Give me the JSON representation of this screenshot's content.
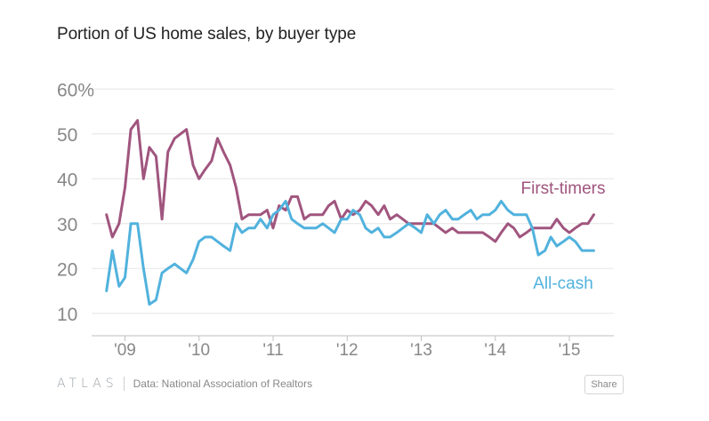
{
  "chart_data": {
    "type": "line",
    "title": "Portion of US home sales, by buyer type",
    "xlabel": "",
    "ylabel": "",
    "ylim": [
      5,
      65
    ],
    "xlim": [
      2008.55,
      2015.6
    ],
    "y_ticks": [
      10,
      20,
      30,
      40,
      50,
      60
    ],
    "y_tick_labels": [
      "10",
      "20",
      "30",
      "40",
      "50",
      "60%"
    ],
    "x_ticks": [
      2009,
      2010,
      2011,
      2012,
      2013,
      2014,
      2015
    ],
    "x_tick_labels": [
      "'09",
      "'10",
      "'11",
      "'12",
      "'13",
      "'14",
      "'15"
    ],
    "series": [
      {
        "name": "First-timers",
        "label": "First-timers",
        "color": "#a0557e",
        "points": [
          [
            2008.75,
            32
          ],
          [
            2008.83,
            27
          ],
          [
            2008.92,
            30
          ],
          [
            2009.0,
            38
          ],
          [
            2009.08,
            51
          ],
          [
            2009.17,
            53
          ],
          [
            2009.25,
            40
          ],
          [
            2009.33,
            47
          ],
          [
            2009.42,
            45
          ],
          [
            2009.5,
            31
          ],
          [
            2009.58,
            46
          ],
          [
            2009.67,
            49
          ],
          [
            2009.75,
            50
          ],
          [
            2009.83,
            51
          ],
          [
            2009.92,
            43
          ],
          [
            2010.0,
            40
          ],
          [
            2010.08,
            42
          ],
          [
            2010.17,
            44
          ],
          [
            2010.25,
            49
          ],
          [
            2010.33,
            46
          ],
          [
            2010.42,
            43
          ],
          [
            2010.5,
            38
          ],
          [
            2010.58,
            31
          ],
          [
            2010.67,
            32
          ],
          [
            2010.75,
            32
          ],
          [
            2010.83,
            32
          ],
          [
            2010.92,
            33
          ],
          [
            2011.0,
            29
          ],
          [
            2011.08,
            34
          ],
          [
            2011.17,
            33
          ],
          [
            2011.25,
            36
          ],
          [
            2011.33,
            36
          ],
          [
            2011.42,
            31
          ],
          [
            2011.5,
            32
          ],
          [
            2011.58,
            32
          ],
          [
            2011.67,
            32
          ],
          [
            2011.75,
            34
          ],
          [
            2011.83,
            35
          ],
          [
            2011.92,
            31
          ],
          [
            2012.0,
            33
          ],
          [
            2012.08,
            32
          ],
          [
            2012.17,
            33
          ],
          [
            2012.25,
            35
          ],
          [
            2012.33,
            34
          ],
          [
            2012.42,
            32
          ],
          [
            2012.5,
            34
          ],
          [
            2012.58,
            31
          ],
          [
            2012.67,
            32
          ],
          [
            2012.75,
            31
          ],
          [
            2012.83,
            30
          ],
          [
            2012.92,
            30
          ],
          [
            2013.0,
            30
          ],
          [
            2013.08,
            30
          ],
          [
            2013.17,
            30
          ],
          [
            2013.25,
            29
          ],
          [
            2013.33,
            28
          ],
          [
            2013.42,
            29
          ],
          [
            2013.5,
            28
          ],
          [
            2013.58,
            28
          ],
          [
            2013.67,
            28
          ],
          [
            2013.75,
            28
          ],
          [
            2013.83,
            28
          ],
          [
            2013.92,
            27
          ],
          [
            2014.0,
            26
          ],
          [
            2014.08,
            28
          ],
          [
            2014.17,
            30
          ],
          [
            2014.25,
            29
          ],
          [
            2014.33,
            27
          ],
          [
            2014.42,
            28
          ],
          [
            2014.5,
            29
          ],
          [
            2014.58,
            29
          ],
          [
            2014.67,
            29
          ],
          [
            2014.75,
            29
          ],
          [
            2014.83,
            31
          ],
          [
            2014.92,
            29
          ],
          [
            2015.0,
            28
          ],
          [
            2015.08,
            29
          ],
          [
            2015.17,
            30
          ],
          [
            2015.25,
            30
          ],
          [
            2015.33,
            32
          ]
        ]
      },
      {
        "name": "All-cash",
        "label": "All-cash",
        "color": "#51b2dd",
        "points": [
          [
            2008.75,
            15
          ],
          [
            2008.83,
            24
          ],
          [
            2008.92,
            16
          ],
          [
            2009.0,
            18
          ],
          [
            2009.08,
            30
          ],
          [
            2009.17,
            30
          ],
          [
            2009.25,
            20
          ],
          [
            2009.33,
            12
          ],
          [
            2009.42,
            13
          ],
          [
            2009.5,
            19
          ],
          [
            2009.58,
            20
          ],
          [
            2009.67,
            21
          ],
          [
            2009.75,
            20
          ],
          [
            2009.83,
            19
          ],
          [
            2009.92,
            22
          ],
          [
            2010.0,
            26
          ],
          [
            2010.08,
            27
          ],
          [
            2010.17,
            27
          ],
          [
            2010.25,
            26
          ],
          [
            2010.33,
            25
          ],
          [
            2010.42,
            24
          ],
          [
            2010.5,
            30
          ],
          [
            2010.58,
            28
          ],
          [
            2010.67,
            29
          ],
          [
            2010.75,
            29
          ],
          [
            2010.83,
            31
          ],
          [
            2010.92,
            29
          ],
          [
            2011.0,
            32
          ],
          [
            2011.08,
            33
          ],
          [
            2011.17,
            35
          ],
          [
            2011.25,
            31
          ],
          [
            2011.33,
            30
          ],
          [
            2011.42,
            29
          ],
          [
            2011.5,
            29
          ],
          [
            2011.58,
            29
          ],
          [
            2011.67,
            30
          ],
          [
            2011.75,
            29
          ],
          [
            2011.83,
            28
          ],
          [
            2011.92,
            31
          ],
          [
            2012.0,
            31
          ],
          [
            2012.08,
            33
          ],
          [
            2012.17,
            32
          ],
          [
            2012.25,
            29
          ],
          [
            2012.33,
            28
          ],
          [
            2012.42,
            29
          ],
          [
            2012.5,
            27
          ],
          [
            2012.58,
            27
          ],
          [
            2012.67,
            28
          ],
          [
            2012.75,
            29
          ],
          [
            2012.83,
            30
          ],
          [
            2012.92,
            29
          ],
          [
            2013.0,
            28
          ],
          [
            2013.08,
            32
          ],
          [
            2013.17,
            30
          ],
          [
            2013.25,
            32
          ],
          [
            2013.33,
            33
          ],
          [
            2013.42,
            31
          ],
          [
            2013.5,
            31
          ],
          [
            2013.58,
            32
          ],
          [
            2013.67,
            33
          ],
          [
            2013.75,
            31
          ],
          [
            2013.83,
            32
          ],
          [
            2013.92,
            32
          ],
          [
            2014.0,
            33
          ],
          [
            2014.08,
            35
          ],
          [
            2014.17,
            33
          ],
          [
            2014.25,
            32
          ],
          [
            2014.33,
            32
          ],
          [
            2014.42,
            32
          ],
          [
            2014.5,
            29
          ],
          [
            2014.58,
            23
          ],
          [
            2014.67,
            24
          ],
          [
            2014.75,
            27
          ],
          [
            2014.83,
            25
          ],
          [
            2014.92,
            26
          ],
          [
            2015.0,
            27
          ],
          [
            2015.08,
            26
          ],
          [
            2015.17,
            24
          ],
          [
            2015.25,
            24
          ],
          [
            2015.33,
            24
          ]
        ]
      }
    ]
  },
  "footer": {
    "logo_text": "ATLAS",
    "source": "Data: National Association of Realtors",
    "share_label": "Share"
  }
}
